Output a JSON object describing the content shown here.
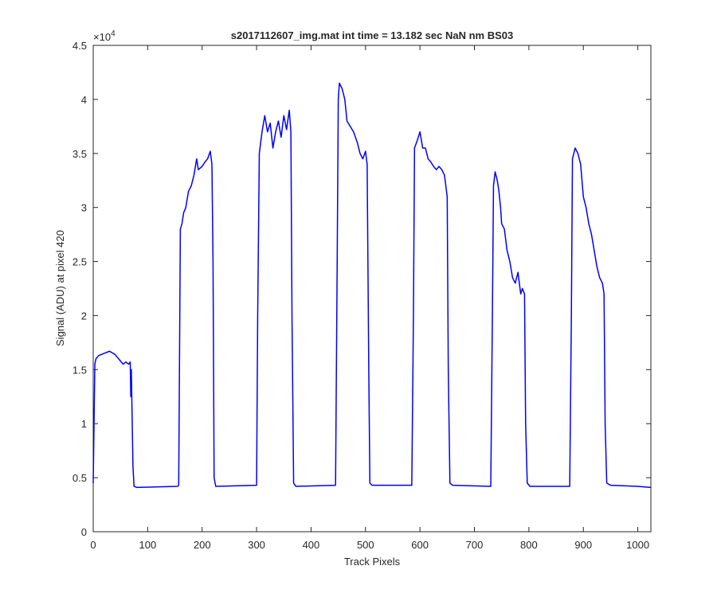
{
  "chart_data": {
    "type": "line",
    "title": "s2017112607_img.mat int time = 13.182 sec  NaN nm BS03",
    "x_label": "Track Pixels",
    "y_label": "Signal (ADU) at pixel 420",
    "y_exponent_base": "×10",
    "y_exponent_power": "4",
    "xlim": [
      0,
      1024
    ],
    "xticks": [
      0,
      100,
      200,
      300,
      400,
      500,
      600,
      700,
      800,
      900,
      1000
    ],
    "ylim": [
      0,
      4.5
    ],
    "yticks": [
      0,
      0.5,
      1,
      1.5,
      2,
      2.5,
      3,
      3.5,
      4,
      4.5
    ],
    "grid": false,
    "series": [
      {
        "name": "signal",
        "color": "#0000ff",
        "x": [
          0,
          3,
          5,
          10,
          20,
          30,
          40,
          50,
          55,
          60,
          65,
          68,
          69,
          70,
          71,
          73,
          75,
          80,
          155,
          157,
          160,
          163,
          166,
          170,
          175,
          180,
          185,
          190,
          193,
          200,
          205,
          210,
          215,
          218,
          220,
          222,
          225,
          300,
          302,
          305,
          310,
          315,
          320,
          325,
          330,
          335,
          340,
          345,
          350,
          355,
          360,
          363,
          365,
          368,
          372,
          445,
          448,
          450,
          452,
          457,
          462,
          466,
          472,
          478,
          485,
          490,
          495,
          500,
          503,
          506,
          508,
          512,
          585,
          588,
          590,
          595,
          600,
          605,
          610,
          615,
          620,
          625,
          630,
          635,
          640,
          645,
          650,
          652,
          655,
          660,
          730,
          733,
          735,
          738,
          742,
          745,
          748,
          750,
          755,
          760,
          765,
          770,
          775,
          780,
          785,
          788,
          792,
          794,
          797,
          802,
          875,
          878,
          880,
          885,
          890,
          895,
          900,
          905,
          910,
          915,
          920,
          925,
          930,
          935,
          938,
          940,
          943,
          950,
          1000,
          1024
        ],
        "values": [
          0.45,
          1.55,
          1.6,
          1.63,
          1.65,
          1.67,
          1.64,
          1.58,
          1.55,
          1.57,
          1.55,
          1.57,
          1.25,
          1.5,
          1.2,
          0.6,
          0.42,
          0.41,
          0.42,
          0.43,
          2.8,
          2.85,
          2.95,
          3.0,
          3.15,
          3.2,
          3.3,
          3.45,
          3.35,
          3.38,
          3.42,
          3.45,
          3.52,
          3.4,
          2.5,
          0.5,
          0.42,
          0.43,
          2.0,
          3.5,
          3.7,
          3.85,
          3.7,
          3.78,
          3.55,
          3.7,
          3.8,
          3.65,
          3.85,
          3.72,
          3.9,
          3.7,
          2.0,
          0.45,
          0.42,
          0.43,
          2.5,
          4.0,
          4.15,
          4.1,
          4.0,
          3.8,
          3.75,
          3.7,
          3.6,
          3.5,
          3.45,
          3.52,
          3.4,
          1.5,
          0.45,
          0.43,
          0.43,
          2.0,
          3.55,
          3.62,
          3.7,
          3.55,
          3.55,
          3.45,
          3.42,
          3.38,
          3.35,
          3.38,
          3.35,
          3.3,
          3.1,
          1.5,
          0.45,
          0.43,
          0.42,
          2.0,
          3.2,
          3.33,
          3.25,
          3.15,
          3.0,
          2.85,
          2.8,
          2.6,
          2.5,
          2.35,
          2.3,
          2.4,
          2.2,
          2.25,
          2.2,
          1.0,
          0.45,
          0.42,
          0.42,
          2.0,
          3.45,
          3.55,
          3.5,
          3.4,
          3.1,
          3.0,
          2.85,
          2.75,
          2.6,
          2.45,
          2.35,
          2.3,
          2.2,
          1.0,
          0.45,
          0.43,
          0.42,
          0.41
        ]
      }
    ]
  }
}
